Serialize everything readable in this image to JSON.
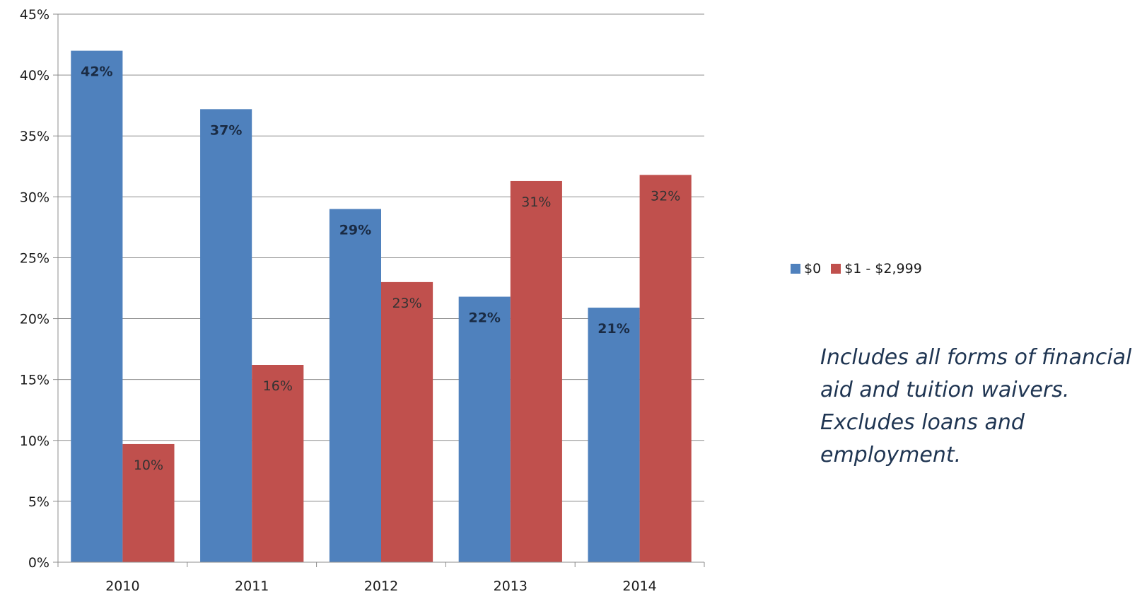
{
  "chart_data": {
    "type": "bar",
    "categories": [
      "2010",
      "2011",
      "2012",
      "2013",
      "2014"
    ],
    "series": [
      {
        "name": "$0",
        "values": [
          42,
          37.2,
          29,
          21.8,
          20.9
        ],
        "labels": [
          "42%",
          "37%",
          "29%",
          "22%",
          "21%"
        ],
        "color": "#4f81bd",
        "label_bold": true
      },
      {
        "name": "$1 - $2,999",
        "values": [
          9.7,
          16.2,
          23,
          31.3,
          31.8
        ],
        "labels": [
          "10%",
          "16%",
          "23%",
          "31%",
          "32%"
        ],
        "color": "#c0504d",
        "label_bold": false
      }
    ],
    "ylim": [
      0,
      45
    ],
    "yticks": [
      0,
      5,
      10,
      15,
      20,
      25,
      30,
      35,
      40,
      45
    ],
    "ytick_labels": [
      "0%",
      "5%",
      "10%",
      "15%",
      "20%",
      "25%",
      "30%",
      "35%",
      "40%",
      "45%"
    ],
    "grid": true,
    "legend_position": "right",
    "title": "",
    "xlabel": "",
    "ylabel": ""
  },
  "note": "Includes all forms of financial aid and tuition waivers. Excludes loans and employment."
}
